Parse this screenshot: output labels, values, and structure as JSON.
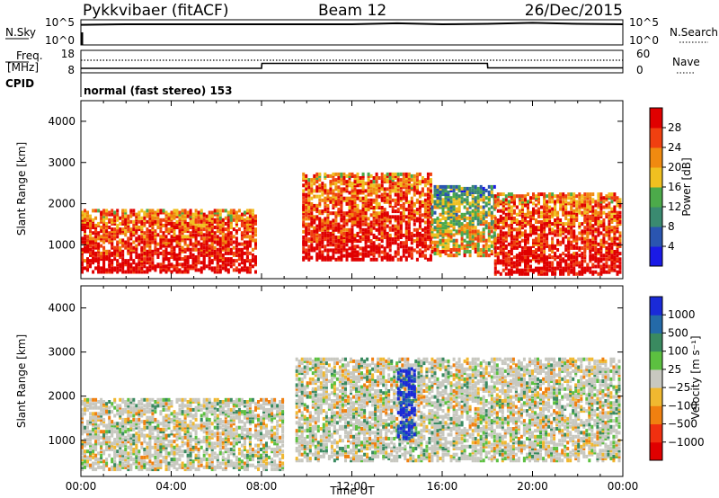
{
  "header": {
    "station": "Pykkvibaer (fitACF)",
    "beam": "Beam 12",
    "date": "26/Dec/2015"
  },
  "strip": {
    "nsky_label": "N.Sky",
    "nsky_ticks": [
      "10^5",
      "10^0"
    ],
    "nsearch_label": "N.Search",
    "nsearch_ticks": [
      "10^5",
      "10^0"
    ],
    "freq_label_1": "Freq.",
    "freq_label_2": "[MHz]",
    "freq_ticks": [
      "18",
      "8"
    ],
    "nave_label": "Nave",
    "nave_ticks": [
      "60",
      "0"
    ],
    "cpid_label": "CPID",
    "cpid_text": "normal (fast stereo) 153"
  },
  "colors": {
    "power_scale": [
      "#1a1ae6",
      "#2a55b0",
      "#3a8a70",
      "#4caa4a",
      "#f0c020",
      "#f08a10",
      "#f04010",
      "#e00000"
    ],
    "velocity_scale": [
      "#1a2ad8",
      "#246aa8",
      "#3a8a60",
      "#5cc040",
      "#c8c8c0",
      "#f0b830",
      "#f08010",
      "#f03010",
      "#e00000"
    ],
    "grey_scatter": "#c0c0bc"
  },
  "chart_data": [
    {
      "type": "line",
      "name": "N.Sky / N.Search",
      "x": [
        "00:00",
        "02:00",
        "04:00",
        "06:00",
        "08:00",
        "10:00",
        "12:00",
        "14:00",
        "16:00",
        "18:00",
        "20:00",
        "22:00",
        "24:00"
      ],
      "values_nsky_log": [
        4.0,
        4.1,
        4.1,
        4.1,
        4.1,
        4.1,
        4.1,
        4.3,
        4.1,
        4.2,
        4.4,
        4.2,
        4.1
      ],
      "ylim_log": [
        0,
        5
      ]
    },
    {
      "type": "line",
      "name": "Freq / Nave",
      "x": [
        "00:00",
        "08:00",
        "08:01",
        "18:00",
        "18:01",
        "24:00"
      ],
      "freq_mhz": [
        10.0,
        10.0,
        12.2,
        12.2,
        10.2,
        10.2
      ],
      "nave_dotted": 28,
      "ylim_freq": [
        8,
        18
      ],
      "ylim_nave": [
        0,
        60
      ]
    },
    {
      "type": "heatmap",
      "title": "Power",
      "xlabel": "Time UT",
      "ylabel": "Slant Range [km]",
      "x_ticks": [
        "00:00",
        "04:00",
        "08:00",
        "12:00",
        "16:00",
        "20:00",
        "00:00"
      ],
      "y_ticks": [
        "1000",
        "2000",
        "3000",
        "4000"
      ],
      "xlim_hours": [
        0,
        24
      ],
      "ylim_km": [
        180,
        4500
      ],
      "colorbar_label": "Power [dB]",
      "colorbar_ticks": [
        "4",
        "8",
        "12",
        "16",
        "20",
        "24",
        "28"
      ],
      "clim": [
        0,
        30
      ],
      "regions": [
        {
          "t": [
            0.0,
            7.8
          ],
          "r": [
            300,
            1800
          ],
          "level": "mixed"
        },
        {
          "t": [
            9.8,
            15.5
          ],
          "r": [
            600,
            2700
          ],
          "level": "mixed"
        },
        {
          "t": [
            15.5,
            18.3
          ],
          "r": [
            700,
            2400
          ],
          "level": "low"
        },
        {
          "t": [
            18.3,
            23.9
          ],
          "r": [
            250,
            2200
          ],
          "level": "mixed"
        }
      ]
    },
    {
      "type": "heatmap",
      "title": "Velocity",
      "xlabel": "Time UT",
      "ylabel": "Slant Range [km]",
      "x_ticks": [
        "00:00",
        "04:00",
        "08:00",
        "12:00",
        "16:00",
        "20:00",
        "00:00"
      ],
      "y_ticks": [
        "1000",
        "2000",
        "3000",
        "4000"
      ],
      "xlim_hours": [
        0,
        24
      ],
      "ylim_km": [
        180,
        4500
      ],
      "colorbar_label": "Velocity [m s⁻¹]",
      "colorbar_ticks": [
        "1000",
        "500",
        "100",
        "25",
        "−25",
        "−100",
        "−500",
        "−1000"
      ],
      "regions": [
        {
          "t": [
            0.0,
            9.0
          ],
          "r": [
            300,
            1900
          ],
          "level": "near-zero"
        },
        {
          "t": [
            9.5,
            23.9
          ],
          "r": [
            500,
            2800
          ],
          "level": "near-zero"
        },
        {
          "t": [
            14.0,
            14.8
          ],
          "r": [
            1000,
            2600
          ],
          "level": "positive-high"
        }
      ]
    }
  ]
}
